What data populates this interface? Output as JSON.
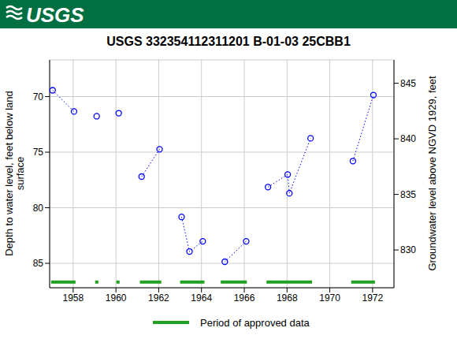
{
  "logo": "USGS",
  "chart_data": {
    "type": "scatter",
    "title": "USGS 332354112311201 B-01-03 25CBB1",
    "ylabel": "Depth to water level, feet below land surface",
    "y2label": "Groundwater level above NGVD 1929, feet",
    "xlim": [
      1956.9,
      1973.0
    ],
    "xticks": [
      1958,
      1960,
      1962,
      1964,
      1966,
      1968,
      1970,
      1972
    ],
    "ylim": [
      66.7,
      87.2
    ],
    "yticks": [
      70,
      75,
      80,
      85
    ],
    "y2lim": [
      826.6,
      847.1
    ],
    "y2ticks": [
      830,
      835,
      840,
      845
    ],
    "grid": true,
    "series": [
      {
        "color": "#0000ff",
        "marker": "circle",
        "line_style": "dotted",
        "x": [
          1957.04,
          1958.04
        ],
        "values": [
          69.43,
          71.34
        ]
      },
      {
        "color": "#0000ff",
        "marker": "circle",
        "line_style": "dotted",
        "x": [
          1959.1
        ],
        "values": [
          71.77
        ]
      },
      {
        "color": "#0000ff",
        "marker": "circle",
        "line_style": "dotted",
        "x": [
          1960.13
        ],
        "values": [
          71.49
        ]
      },
      {
        "color": "#0000ff",
        "marker": "circle",
        "line_style": "dotted",
        "x": [
          1961.2,
          1962.04
        ],
        "values": [
          77.2,
          74.74
        ]
      },
      {
        "color": "#0000ff",
        "marker": "circle",
        "line_style": "dotted",
        "x": [
          1963.07,
          1963.44,
          1964.06
        ],
        "values": [
          80.83,
          83.94,
          83.02
        ]
      },
      {
        "color": "#0000ff",
        "marker": "circle",
        "line_style": "dotted",
        "x": [
          1965.09,
          1966.09
        ],
        "values": [
          84.86,
          83.02
        ]
      },
      {
        "color": "#0000ff",
        "marker": "circle",
        "line_style": "dotted",
        "x": [
          1967.11,
          1968.03,
          1968.11,
          1969.1
        ],
        "values": [
          78.14,
          77.01,
          78.7,
          73.75
        ]
      },
      {
        "color": "#0000ff",
        "marker": "circle",
        "line_style": "dotted",
        "x": [
          1971.08,
          1972.04
        ],
        "values": [
          75.8,
          69.86
        ]
      }
    ],
    "approved": {
      "name": "Period of approved data",
      "color": "#22a022",
      "periods": [
        [
          1956.97,
          1958.11
        ],
        [
          1959.03,
          1959.18
        ],
        [
          1960.02,
          1960.17
        ],
        [
          1961.12,
          1962.12
        ],
        [
          1963.0,
          1964.14
        ],
        [
          1964.9,
          1966.12
        ],
        [
          1967.04,
          1969.17
        ],
        [
          1971.0,
          1972.11
        ]
      ]
    }
  }
}
